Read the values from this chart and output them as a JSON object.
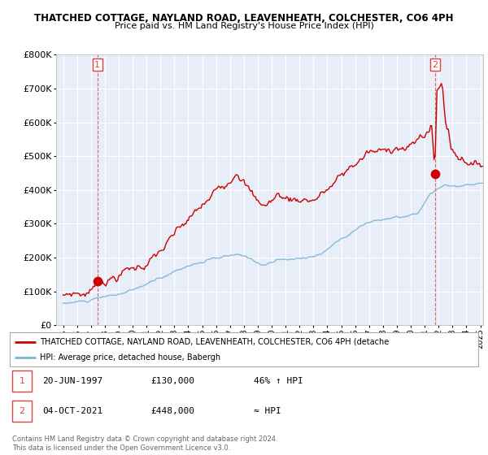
{
  "title1": "THATCHED COTTAGE, NAYLAND ROAD, LEAVENHEATH, COLCHESTER, CO6 4PH",
  "title2": "Price paid vs. HM Land Registry's House Price Index (HPI)",
  "ylim": [
    0,
    800000
  ],
  "yticks": [
    0,
    100000,
    200000,
    300000,
    400000,
    500000,
    600000,
    700000,
    800000
  ],
  "ytick_labels": [
    "£0",
    "£100K",
    "£200K",
    "£300K",
    "£400K",
    "£500K",
    "£600K",
    "£700K",
    "£800K"
  ],
  "xlim_start": 1994.5,
  "xlim_end": 2025.2,
  "transaction1_x": 1997.47,
  "transaction1_y": 130000,
  "transaction1_label": "1",
  "transaction2_x": 2021.76,
  "transaction2_y": 448000,
  "transaction2_label": "2",
  "line_color_red": "#cc0000",
  "line_color_blue": "#7ab4d8",
  "dashed_line_color": "#dd4444",
  "plot_bg_color": "#e8eef8",
  "grid_color": "#ffffff",
  "legend_text1": "THATCHED COTTAGE, NAYLAND ROAD, LEAVENHEATH, COLCHESTER, CO6 4PH (detache",
  "legend_text2": "HPI: Average price, detached house, Babergh",
  "note1_label": "1",
  "note1_date": "20-JUN-1997",
  "note1_price": "£130,000",
  "note1_hpi": "46% ↑ HPI",
  "note2_label": "2",
  "note2_date": "04-OCT-2021",
  "note2_price": "£448,000",
  "note2_hpi": "≈ HPI",
  "footer": "Contains HM Land Registry data © Crown copyright and database right 2024.\nThis data is licensed under the Open Government Licence v3.0."
}
